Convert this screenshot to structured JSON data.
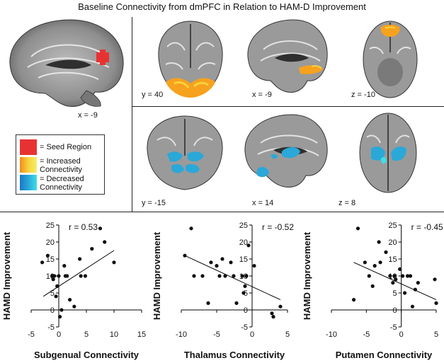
{
  "title": "Baseline Connectivity from dmPFC in Relation to HAM-D Improvement",
  "brain_views": {
    "seed": "x = -9",
    "increased": [
      "y = 40",
      "x = -9",
      "z = -10"
    ],
    "decreased": [
      "y = -15",
      "x = 14",
      "z = 8"
    ]
  },
  "legend": [
    {
      "label": "= Seed Region",
      "color": "#e83232"
    },
    {
      "label": "=  Increased\nConnectivity",
      "color": "#f6a21e"
    },
    {
      "label": "= Decreased\nConnectivity",
      "color": "#2aa8d8"
    }
  ],
  "colors": {
    "seed": "#e83232",
    "increased": "#f6a21e",
    "decreased": "#2aa8d8"
  },
  "chart_data": [
    {
      "type": "scatter",
      "xlabel": "Subgenual Connectivity",
      "ylabel": "HAMD Improvement",
      "r_label": "r = 0.53",
      "xlim": [
        -5,
        15
      ],
      "ylim": [
        -5,
        25
      ],
      "xticks": [
        -5,
        0,
        5,
        10,
        15
      ],
      "yticks": [
        -5,
        0,
        5,
        10,
        15,
        20,
        25
      ],
      "points": [
        [
          -3,
          14
        ],
        [
          -2,
          16
        ],
        [
          -1.2,
          10
        ],
        [
          -1,
          9
        ],
        [
          -0.8,
          10
        ],
        [
          -0.5,
          4
        ],
        [
          -0.3,
          7
        ],
        [
          0,
          10
        ],
        [
          0.2,
          -2
        ],
        [
          0.5,
          0
        ],
        [
          1,
          13
        ],
        [
          1.2,
          10
        ],
        [
          1.5,
          10
        ],
        [
          2,
          3
        ],
        [
          2.8,
          1
        ],
        [
          3.8,
          15
        ],
        [
          4,
          10
        ],
        [
          4.8,
          10
        ],
        [
          6,
          18
        ],
        [
          7.5,
          24
        ],
        [
          8.3,
          20
        ],
        [
          10,
          14
        ]
      ],
      "fit": [
        [
          -2.8,
          4
        ],
        [
          10,
          17.5
        ]
      ]
    },
    {
      "type": "scatter",
      "xlabel": "Thalamus Connectivity",
      "ylabel": "HAMD Improvement",
      "r_label": "r = -0.52",
      "xlim": [
        -10,
        5
      ],
      "ylim": [
        -5,
        25
      ],
      "xticks": [
        -10,
        -5,
        0,
        5
      ],
      "yticks": [
        -5,
        0,
        5,
        10,
        15,
        20,
        25
      ],
      "points": [
        [
          -9.5,
          16
        ],
        [
          -8.6,
          24
        ],
        [
          -8.2,
          10
        ],
        [
          -7,
          10
        ],
        [
          -6.2,
          2
        ],
        [
          -5.8,
          14
        ],
        [
          -5,
          13
        ],
        [
          -4.6,
          10
        ],
        [
          -4.2,
          15
        ],
        [
          -3.8,
          10
        ],
        [
          -3,
          14
        ],
        [
          -2.6,
          10
        ],
        [
          -2.2,
          2
        ],
        [
          -1.4,
          10
        ],
        [
          -1.2,
          5
        ],
        [
          -1,
          7
        ],
        [
          -0.8,
          10
        ],
        [
          -0.5,
          19
        ],
        [
          0.3,
          13
        ],
        [
          2.8,
          -1
        ],
        [
          3,
          -2
        ],
        [
          4,
          1
        ]
      ],
      "fit": [
        [
          -9.5,
          16
        ],
        [
          4,
          3
        ]
      ]
    },
    {
      "type": "scatter",
      "xlabel": "Putamen Connectivity",
      "ylabel": "HAMD Improvement",
      "r_label": "r = -0.45",
      "xlim": [
        -10,
        5
      ],
      "ylim": [
        -5,
        25
      ],
      "xticks": [
        -10,
        -5,
        0,
        5
      ],
      "yticks": [
        -5,
        0,
        5,
        10,
        15,
        20,
        25
      ],
      "points": [
        [
          -6.8,
          3
        ],
        [
          -6.2,
          24
        ],
        [
          -5.2,
          14
        ],
        [
          -4.6,
          10
        ],
        [
          -4.1,
          7
        ],
        [
          -3.8,
          13
        ],
        [
          -3.2,
          20
        ],
        [
          -3,
          14
        ],
        [
          -2.2,
          17
        ],
        [
          -1.6,
          10
        ],
        [
          -1.2,
          8
        ],
        [
          -1,
          10
        ],
        [
          -0.8,
          9
        ],
        [
          -0.2,
          12
        ],
        [
          0.2,
          10
        ],
        [
          0.5,
          5
        ],
        [
          0.9,
          10
        ],
        [
          1.3,
          10
        ],
        [
          1.6,
          1
        ],
        [
          2,
          6
        ],
        [
          2.4,
          8
        ],
        [
          4.8,
          9
        ],
        [
          5,
          2
        ]
      ],
      "fit": [
        [
          -6.8,
          14
        ],
        [
          5,
          3
        ]
      ]
    }
  ]
}
